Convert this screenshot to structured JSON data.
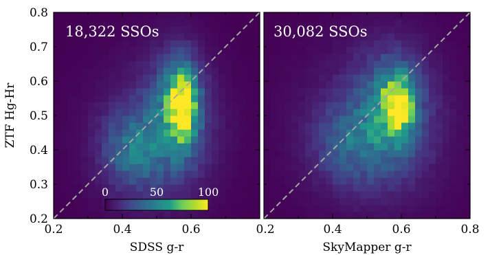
{
  "chart_data": [
    {
      "type": "heatmap",
      "annotation": "18,322 SSOs",
      "xlabel": "SDSS g-r",
      "ylabel": "ZTF Hg-Hr",
      "xlim": [
        0.2,
        0.8
      ],
      "ylim": [
        0.2,
        0.8
      ],
      "x_ticks": [
        "0.2",
        "0.4",
        "0.6"
      ],
      "y_ticks": [
        "0.2",
        "0.3",
        "0.4",
        "0.5",
        "0.6",
        "0.7",
        "0.8"
      ],
      "grid": false,
      "reference_line": "y = x (dashed, gray)",
      "bins": 30,
      "density_components": [
        {
          "x": 0.575,
          "y": 0.535,
          "sx": 0.028,
          "sy": 0.075,
          "amp": 95
        },
        {
          "x": 0.555,
          "y": 0.5,
          "sx": 0.06,
          "sy": 0.12,
          "amp": 40
        },
        {
          "x": 0.43,
          "y": 0.4,
          "sx": 0.06,
          "sy": 0.08,
          "amp": 38
        },
        {
          "x": 0.5,
          "y": 0.45,
          "sx": 0.13,
          "sy": 0.15,
          "amp": 14
        }
      ],
      "colorbar": {
        "ticks": [
          "0",
          "50",
          "100"
        ],
        "range": [
          0,
          110
        ],
        "colormap": "viridis"
      }
    },
    {
      "type": "heatmap",
      "annotation": "30,082 SSOs",
      "xlabel": "SkyMapper g-r",
      "xlim": [
        0.2,
        0.8
      ],
      "ylim": [
        0.2,
        0.8
      ],
      "x_ticks": [
        "0.2",
        "0.4",
        "0.6",
        "0.8"
      ],
      "grid": false,
      "reference_line": "y = x (dashed, gray)",
      "bins": 30,
      "density_components": [
        {
          "x": 0.59,
          "y": 0.535,
          "sx": 0.032,
          "sy": 0.06,
          "amp": 85
        },
        {
          "x": 0.57,
          "y": 0.51,
          "sx": 0.07,
          "sy": 0.12,
          "amp": 38
        },
        {
          "x": 0.45,
          "y": 0.42,
          "sx": 0.07,
          "sy": 0.08,
          "amp": 28
        },
        {
          "x": 0.52,
          "y": 0.47,
          "sx": 0.15,
          "sy": 0.16,
          "amp": 16
        }
      ]
    }
  ],
  "colors": {
    "reference_line": "#a6a6a6",
    "viridis": [
      "#440154",
      "#482777",
      "#3f4a8a",
      "#31678e",
      "#26838f",
      "#1f9d8a",
      "#6cce5a",
      "#b6de2b",
      "#fee825"
    ]
  }
}
